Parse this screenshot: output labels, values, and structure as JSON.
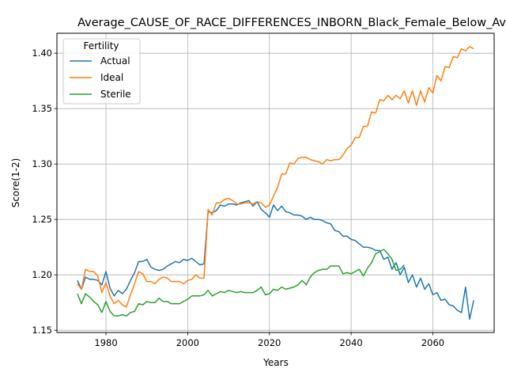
{
  "chart_data": {
    "type": "line",
    "title": "Average_CAUSE_OF_RACE_DIFFERENCES_INBORN_Black_Female_Below_Average",
    "xlabel": "Years",
    "ylabel": "Score(1-2)",
    "xlim": [
      1968,
      2075
    ],
    "ylim": [
      1.148,
      1.418
    ],
    "xticks": [
      1980,
      2000,
      2020,
      2040,
      2060
    ],
    "yticks": [
      1.15,
      1.2,
      1.25,
      1.3,
      1.35,
      1.4
    ],
    "xtick_labels": [
      "1980",
      "2000",
      "2020",
      "2040",
      "2060"
    ],
    "ytick_labels": [
      "1.15",
      "1.20",
      "1.25",
      "1.30",
      "1.35",
      "1.40"
    ],
    "grid": true,
    "legend": {
      "title": "Fertility",
      "placement": "top-left"
    },
    "x_start": 1973,
    "x_step": 1,
    "series": [
      {
        "name": "Actual",
        "color": "#1f77b4",
        "values": [
          1.195,
          1.187,
          1.198,
          1.196,
          1.196,
          1.195,
          1.191,
          1.203,
          1.188,
          1.181,
          1.186,
          1.183,
          1.187,
          1.195,
          1.202,
          1.212,
          1.212,
          1.214,
          1.207,
          1.205,
          1.204,
          1.205,
          1.208,
          1.21,
          1.212,
          1.211,
          1.214,
          1.213,
          1.215,
          1.212,
          1.209,
          1.21,
          1.257,
          1.256,
          1.258,
          1.263,
          1.262,
          1.264,
          1.264,
          1.263,
          1.265,
          1.266,
          1.267,
          1.262,
          1.266,
          1.259,
          1.256,
          1.252,
          1.263,
          1.258,
          1.262,
          1.257,
          1.256,
          1.254,
          1.254,
          1.253,
          1.25,
          1.252,
          1.25,
          1.25,
          1.249,
          1.247,
          1.246,
          1.24,
          1.239,
          1.235,
          1.235,
          1.232,
          1.231,
          1.228,
          1.225,
          1.225,
          1.224,
          1.222,
          1.222,
          1.214,
          1.216,
          1.205,
          1.211,
          1.2,
          1.207,
          1.193,
          1.2,
          1.189,
          1.197,
          1.187,
          1.192,
          1.182,
          1.184,
          1.177,
          1.178,
          1.173,
          1.172,
          1.168,
          1.166,
          1.189,
          1.16,
          1.177
        ]
      },
      {
        "name": "Ideal",
        "color": "#ff7f0e",
        "values": [
          1.192,
          1.187,
          1.205,
          1.203,
          1.203,
          1.199,
          1.184,
          1.193,
          1.181,
          1.174,
          1.177,
          1.173,
          1.171,
          1.182,
          1.192,
          1.203,
          1.201,
          1.194,
          1.194,
          1.192,
          1.196,
          1.198,
          1.197,
          1.194,
          1.194,
          1.194,
          1.192,
          1.195,
          1.196,
          1.2,
          1.197,
          1.197,
          1.259,
          1.254,
          1.265,
          1.265,
          1.268,
          1.269,
          1.267,
          1.264,
          1.264,
          1.265,
          1.265,
          1.264,
          1.266,
          1.265,
          1.261,
          1.263,
          1.271,
          1.279,
          1.291,
          1.291,
          1.301,
          1.3,
          1.305,
          1.306,
          1.306,
          1.304,
          1.303,
          1.302,
          1.3,
          1.304,
          1.303,
          1.304,
          1.304,
          1.308,
          1.314,
          1.317,
          1.324,
          1.324,
          1.334,
          1.334,
          1.347,
          1.346,
          1.358,
          1.357,
          1.362,
          1.358,
          1.362,
          1.359,
          1.366,
          1.355,
          1.366,
          1.353,
          1.366,
          1.356,
          1.369,
          1.364,
          1.38,
          1.375,
          1.388,
          1.387,
          1.397,
          1.396,
          1.404,
          1.402,
          1.406,
          1.404
        ]
      },
      {
        "name": "Sterile",
        "color": "#2ca02c",
        "values": [
          1.183,
          1.174,
          1.183,
          1.18,
          1.176,
          1.173,
          1.166,
          1.176,
          1.167,
          1.163,
          1.163,
          1.164,
          1.163,
          1.166,
          1.167,
          1.174,
          1.173,
          1.176,
          1.175,
          1.175,
          1.179,
          1.176,
          1.176,
          1.174,
          1.174,
          1.174,
          1.176,
          1.178,
          1.181,
          1.181,
          1.181,
          1.182,
          1.186,
          1.181,
          1.183,
          1.185,
          1.184,
          1.186,
          1.185,
          1.184,
          1.185,
          1.184,
          1.184,
          1.184,
          1.186,
          1.189,
          1.182,
          1.183,
          1.187,
          1.186,
          1.189,
          1.187,
          1.188,
          1.189,
          1.191,
          1.195,
          1.191,
          1.198,
          1.202,
          1.204,
          1.205,
          1.205,
          1.208,
          1.208,
          1.208,
          1.201,
          1.202,
          1.201,
          1.203,
          1.205,
          1.199,
          1.206,
          1.211,
          1.219,
          1.221,
          1.223,
          1.219,
          1.214,
          1.204,
          1.205,
          1.209
        ]
      }
    ]
  }
}
